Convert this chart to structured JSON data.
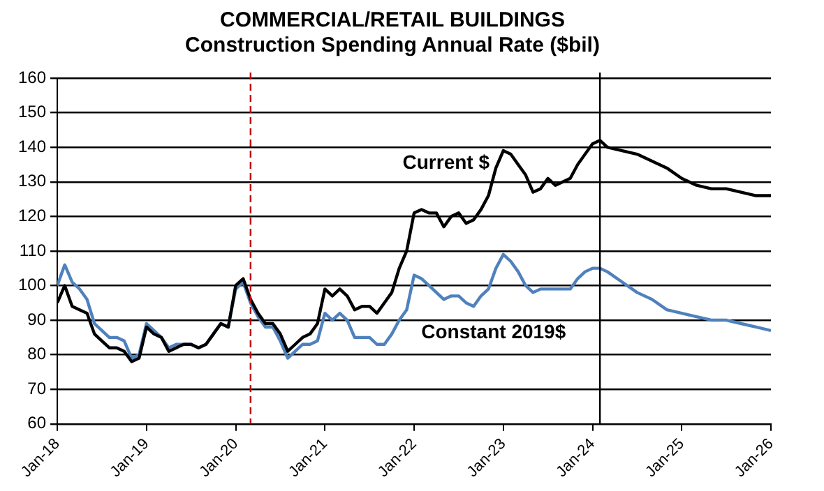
{
  "chart_data": {
    "type": "line",
    "title": [
      "COMMERCIAL/RETAIL BUILDINGS",
      "Construction Spending Annual Rate ($bil)"
    ],
    "x": [
      "2018-01",
      "2018-02",
      "2018-03",
      "2018-04",
      "2018-05",
      "2018-06",
      "2018-07",
      "2018-08",
      "2018-09",
      "2018-10",
      "2018-11",
      "2018-12",
      "2019-01",
      "2019-02",
      "2019-03",
      "2019-04",
      "2019-05",
      "2019-06",
      "2019-07",
      "2019-08",
      "2019-09",
      "2019-10",
      "2019-11",
      "2019-12",
      "2020-01",
      "2020-02",
      "2020-03",
      "2020-04",
      "2020-05",
      "2020-06",
      "2020-07",
      "2020-08",
      "2020-09",
      "2020-10",
      "2020-11",
      "2020-12",
      "2021-01",
      "2021-02",
      "2021-03",
      "2021-04",
      "2021-05",
      "2021-06",
      "2021-07",
      "2021-08",
      "2021-09",
      "2021-10",
      "2021-11",
      "2021-12",
      "2022-01",
      "2022-02",
      "2022-03",
      "2022-04",
      "2022-05",
      "2022-06",
      "2022-07",
      "2022-08",
      "2022-09",
      "2022-10",
      "2022-11",
      "2022-12",
      "2023-01",
      "2023-02",
      "2023-03",
      "2023-04",
      "2023-05",
      "2023-06",
      "2023-07",
      "2023-08",
      "2023-09",
      "2023-10",
      "2023-11",
      "2023-12",
      "2024-01",
      "2024-02",
      "2024-03",
      "2024-05",
      "2024-07",
      "2024-09",
      "2024-11",
      "2025-01",
      "2025-03",
      "2025-05",
      "2025-07",
      "2025-09",
      "2025-11",
      "2026-01"
    ],
    "series": [
      {
        "name": "Current $",
        "color": "#000000",
        "values": [
          95,
          100,
          94,
          93,
          92,
          86,
          84,
          82,
          82,
          81,
          78,
          79,
          88,
          86,
          85,
          81,
          82,
          83,
          83,
          82,
          83,
          86,
          89,
          88,
          100,
          102,
          96,
          92,
          89,
          89,
          86,
          81,
          83,
          85,
          86,
          89,
          99,
          97,
          99,
          97,
          93,
          94,
          94,
          92,
          95,
          98,
          105,
          110,
          121,
          122,
          121,
          121,
          117,
          120,
          121,
          118,
          119,
          122,
          126,
          134,
          139,
          138,
          135,
          132,
          127,
          128,
          131,
          129,
          130,
          131,
          135,
          138,
          141,
          142,
          140,
          139,
          138,
          136,
          134,
          131,
          129,
          128,
          128,
          127,
          126,
          126
        ]
      },
      {
        "name": "Constant 2019$",
        "color": "#4f81bd",
        "values": [
          100,
          106,
          101,
          99,
          96,
          89,
          87,
          85,
          85,
          84,
          79,
          80,
          89,
          87,
          85,
          82,
          83,
          83,
          83,
          82,
          83,
          86,
          89,
          88,
          99,
          101,
          95,
          91,
          88,
          88,
          84,
          79,
          81,
          83,
          83,
          84,
          92,
          90,
          92,
          90,
          85,
          85,
          85,
          83,
          83,
          86,
          90,
          93,
          103,
          102,
          100,
          98,
          96,
          97,
          97,
          95,
          94,
          97,
          99,
          105,
          109,
          107,
          104,
          100,
          98,
          99,
          99,
          99,
          99,
          99,
          102,
          104,
          105,
          105,
          104,
          101,
          98,
          96,
          93,
          92,
          91,
          90,
          90,
          89,
          88,
          87
        ]
      }
    ],
    "xlim": [
      "2018-01",
      "2026-01"
    ],
    "xticks": [
      {
        "value": "2018-01",
        "label": "Jan-18"
      },
      {
        "value": "2019-01",
        "label": "Jan-19"
      },
      {
        "value": "2020-01",
        "label": "Jan-20"
      },
      {
        "value": "2021-01",
        "label": "Jan-21"
      },
      {
        "value": "2022-01",
        "label": "Jan-22"
      },
      {
        "value": "2023-01",
        "label": "Jan-23"
      },
      {
        "value": "2024-01",
        "label": "Jan-24"
      },
      {
        "value": "2025-01",
        "label": "Jan-25"
      },
      {
        "value": "2026-01",
        "label": "Jan-26"
      }
    ],
    "ylim": [
      60,
      160
    ],
    "yticks": [
      60,
      70,
      80,
      90,
      100,
      110,
      120,
      130,
      140,
      150,
      160
    ],
    "ref_lines": [
      {
        "axis": "x",
        "value": "2020-03",
        "color": "#c00000",
        "line_style": "dashed"
      },
      {
        "axis": "x",
        "value": "2024-02",
        "color": "#000000",
        "line_style": "solid"
      }
    ],
    "grid": "y",
    "legend": false,
    "marker": "none",
    "line_style": "solid"
  }
}
